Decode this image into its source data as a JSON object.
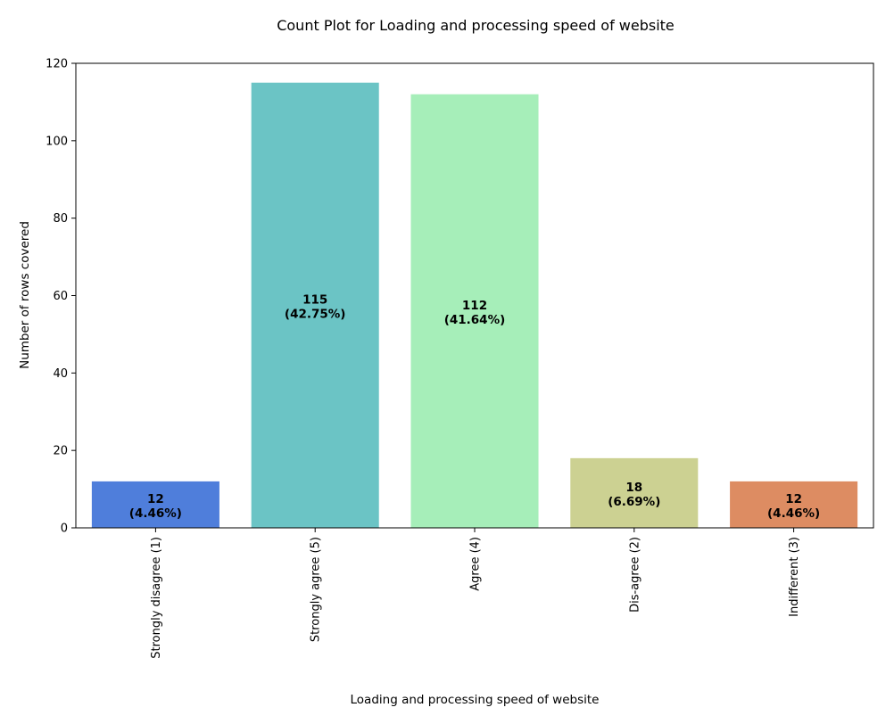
{
  "chart_data": {
    "type": "bar",
    "title": "Count Plot for Loading and processing speed of website",
    "xlabel": "Loading and processing speed of website",
    "ylabel": "Number of rows covered",
    "categories": [
      "Strongly disagree (1)",
      "Strongly agree (5)",
      "Agree (4)",
      "Dis-agree (2)",
      "Indifferent (3)"
    ],
    "values": [
      12,
      115,
      112,
      18,
      12
    ],
    "percent_labels": [
      "(4.46%)",
      "(42.75%)",
      "(41.64%)",
      "(6.69%)",
      "(4.46%)"
    ],
    "colors": [
      "#4f7edb",
      "#6bc4c5",
      "#a6eeb9",
      "#ccd192",
      "#dd8c62"
    ],
    "ylim": [
      0,
      120
    ],
    "yticks": [
      0,
      20,
      40,
      60,
      80,
      100,
      120
    ],
    "grid": false,
    "legend": "none"
  }
}
